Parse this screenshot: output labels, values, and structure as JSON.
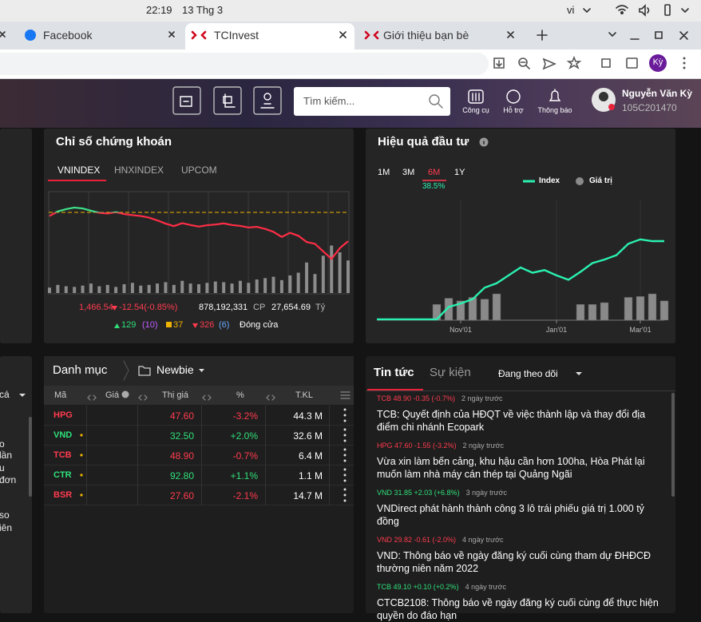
{
  "os_bar": {
    "time": "22:19",
    "date": "13 Thg 3",
    "language": "vi"
  },
  "browser": {
    "tabs": [
      "Facebook",
      "TCInvest",
      "Giới thiệu bạn bè"
    ],
    "profile": "Kỳ"
  },
  "header": {
    "search_placeholder": "Tìm kiếm...",
    "menu": [
      "Công cụ",
      "Hỗ trợ",
      "Thông báo"
    ],
    "user_name": "Nguyễn Văn Kỳ",
    "user_id": "105C201470"
  },
  "left_panel": {
    "texts": [
      "cá",
      "o",
      "lần",
      "u",
      "đơn",
      "so",
      "iên"
    ]
  },
  "index_panel": {
    "title": "Chỉ số chứng khoán",
    "tabs": [
      "VNINDEX",
      "HNXINDEX",
      "UPCOM"
    ],
    "active_tab": 0,
    "stats": {
      "index": "1,466.54",
      "change": "-12.54(-0.85%)",
      "volume": "878,192,331",
      "volume_unit": "CP",
      "value": "27,654.69",
      "value_unit": "Tỷ",
      "advancers": "129",
      "ceiling": "(10)",
      "unchanged": "37",
      "decliners": "326",
      "floor": "(6)",
      "status": "Đóng cửa"
    }
  },
  "performance_panel": {
    "title": "Hiệu quả đầu tư",
    "periods": [
      "1M",
      "3M",
      "6M",
      "1Y"
    ],
    "active_period": 2,
    "return": "38.5%"
  },
  "chart_data": [
    {
      "type": "line",
      "color_up": "#3fe38a",
      "color_down": "#ff2d45",
      "values": [
        1477.5,
        1479.5,
        1480.5,
        1481.2,
        1480.8,
        1479.8,
        1478.9,
        1478.6,
        1479.2,
        1478.4,
        1477.9,
        1477.5,
        1476.8,
        1475.6,
        1474.2,
        1473.1,
        1474.4,
        1473.6,
        1472.9,
        1473.5,
        1473.8,
        1474.3,
        1473.6,
        1473.2,
        1472.5,
        1472.8,
        1471.9,
        1470.6,
        1468.4,
        1470.2,
        1468.9,
        1466.2,
        1465.4,
        1462.1,
        1458.8,
        1463.5,
        1466.54
      ],
      "ylim": [
        1451.6,
        1486.4
      ],
      "reference": 1479.08,
      "reference_color": "#f0b400",
      "volume": [
        8,
        12,
        10,
        9,
        11,
        14,
        10,
        12,
        9,
        13,
        15,
        11,
        12,
        14,
        16,
        12,
        18,
        14,
        13,
        15,
        17,
        16,
        14,
        18,
        15,
        20,
        22,
        24,
        19,
        26,
        30,
        45,
        28,
        55,
        70,
        60,
        48
      ],
      "volume_lim": [
        0,
        100
      ],
      "volume_color": "#8c8c8c"
    },
    {
      "type": "line",
      "categories": [
        null,
        null,
        null,
        null,
        null,
        null,
        null,
        "Nov'01",
        null,
        null,
        null,
        null,
        null,
        null,
        null,
        "Jan'01",
        null,
        null,
        null,
        null,
        null,
        null,
        "Mar'01",
        null,
        null
      ],
      "series": [
        {
          "name": "Index",
          "color": "#2af0b0",
          "values": [
            1,
            1,
            1,
            1,
            1,
            1,
            15,
            19,
            24,
            37,
            42,
            51,
            60,
            54,
            57,
            51,
            46,
            55,
            65,
            69,
            74,
            87,
            92,
            90,
            90
          ]
        },
        {
          "name": "Giá trị",
          "color": "#8a8a8a",
          "type": "bar",
          "values": [
            0,
            0,
            0,
            0,
            0,
            18,
            25,
            22,
            26,
            24,
            30,
            0,
            0,
            0,
            0,
            0,
            0,
            18,
            18,
            20,
            0,
            26,
            27,
            30,
            22
          ]
        }
      ],
      "ylim": [
        0,
        100
      ]
    }
  ],
  "portfolio": {
    "title": "Danh mục",
    "group": "Newbie",
    "columns": [
      "Mã",
      "Giá",
      "Thị giá",
      "%",
      "T.KL"
    ],
    "rows": [
      {
        "symbol": "HPG",
        "price": "47.60",
        "change": "-3.2%",
        "volume": "44.3 M",
        "trend": "down",
        "alert": false
      },
      {
        "symbol": "VND",
        "price": "32.50",
        "change": "+2.0%",
        "volume": "32.6 M",
        "trend": "up",
        "alert": true
      },
      {
        "symbol": "TCB",
        "price": "48.90",
        "change": "-0.7%",
        "volume": "6.4 M",
        "trend": "down",
        "alert": true
      },
      {
        "symbol": "CTR",
        "price": "92.80",
        "change": "+1.1%",
        "volume": "1.1 M",
        "trend": "up",
        "alert": true
      },
      {
        "symbol": "BSR",
        "price": "27.60",
        "change": "-2.1%",
        "volume": "14.7 M",
        "trend": "down",
        "alert": true
      }
    ]
  },
  "news": {
    "tabs": [
      "Tin tức",
      "Sự kiện"
    ],
    "filter": "Đang theo dõi",
    "items": [
      {
        "quote": "TCB 48.90 -0.35 (-0.7%)",
        "time": "2 ngày trước",
        "headline": "TCB: Quyết định của HĐQT về việc thành lập và thay đổi địa điểm chi nhánh Ecopark",
        "trend": "down"
      },
      {
        "quote": "HPG 47.60 -1.55 (-3.2%)",
        "time": "2 ngày trước",
        "headline": "Vừa xin làm bến cảng, khu hậu cần hơn 100ha, Hòa Phát lại muốn làm nhà máy cán thép tại Quảng Ngãi",
        "trend": "down"
      },
      {
        "quote": "VND 31.85 +2.03 (+6.8%)",
        "time": "3 ngày trước",
        "headline": "VNDirect phát hành thành công 3 lô trái phiếu giá trị 1.000 tỷ đồng",
        "trend": "up"
      },
      {
        "quote": "VND 29.82 -0.61 (-2.0%)",
        "time": "4 ngày trước",
        "headline": "VND: Thông báo về ngày đăng ký cuối cùng tham dự ĐHĐCĐ thường niên năm 2022",
        "trend": "down"
      },
      {
        "quote": "TCB 49.10 +0.10 (+0.2%)",
        "time": "4 ngày trước",
        "headline": "CTCB2108: Thông báo về ngày đăng ký cuối cùng để thực hiện quyền do đáo hạn",
        "trend": "up"
      }
    ]
  }
}
